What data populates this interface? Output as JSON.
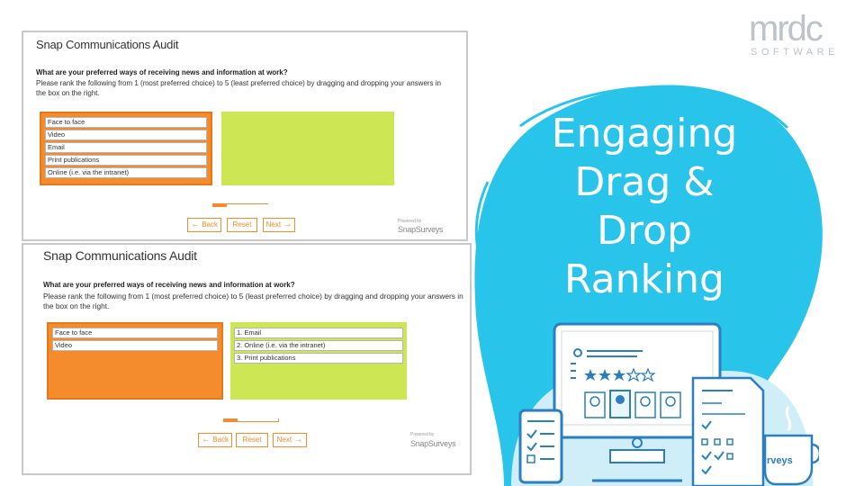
{
  "brand": {
    "main": "mrdc",
    "sub": "SOFTWARE"
  },
  "headline": {
    "line1": "Engaging",
    "line2": "Drag &",
    "line3": "Drop",
    "line4": "Ranking"
  },
  "survey": {
    "title": "Snap Communications Audit",
    "question": "What are your preferred ways of receiving news and information at work?",
    "instruction_line1": "Please rank the following from 1 (most preferred choice) to 5 (least preferred choice) by dragging and dropping your answers in",
    "instruction_line2": "the box on the right.",
    "nav": {
      "back": "Back",
      "reset": "Reset",
      "next": "Next"
    },
    "powered_by": "Powered by",
    "powered_logo": "SnapSurveys"
  },
  "panel1": {
    "options": [
      "Face to face",
      "Video",
      "Email",
      "Print publications",
      "Online (i.e. via the intranet)"
    ],
    "ranked": [],
    "progress": 0.25
  },
  "panel2": {
    "options": [
      "Face to face",
      "Video"
    ],
    "ranked": [
      "1. Email",
      "2. Online (i.e. via the intranet)",
      "3. Print publications"
    ],
    "progress": 0.25
  },
  "illustration": {
    "mug_text": "rveys"
  },
  "colors": {
    "orange": "#f48b2c",
    "green": "#cde654",
    "blob": "#29c4ea",
    "illus_blue": "#2a7fc1",
    "illus_light": "#cfeef8",
    "logo_gray": "#bdc3c8"
  }
}
